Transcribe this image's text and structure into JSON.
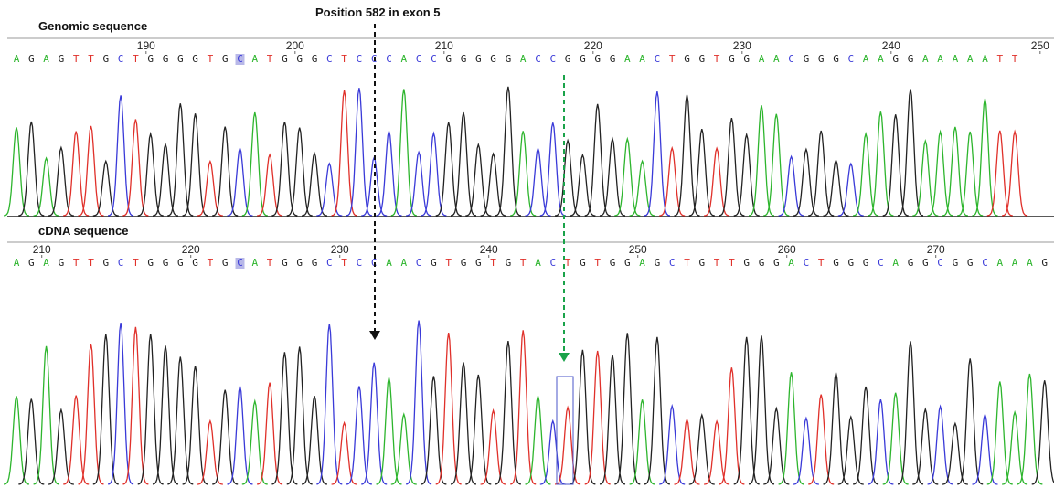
{
  "annotation": "Position 582 in exon 5",
  "panels": [
    {
      "title": "Genomic sequence",
      "positions": [
        190,
        200,
        210,
        220,
        230,
        240,
        250
      ],
      "bases": [
        "A",
        "G",
        "A",
        "G",
        "T",
        "T",
        "G",
        "C",
        "T",
        "G",
        "G",
        "G",
        "G",
        "T",
        "G",
        "C",
        "A",
        "T",
        "G",
        "G",
        "G",
        "C",
        "T",
        "C",
        "C",
        "C",
        "A",
        "C",
        "C",
        "G",
        "G",
        "G",
        "G",
        "G",
        "A",
        "C",
        "C",
        "G",
        "G",
        "G",
        "G",
        "A",
        "A",
        "C",
        "T",
        "G",
        "G",
        "T",
        "G",
        "G",
        "A",
        "A",
        "C",
        "G",
        "G",
        "G",
        "C",
        "A",
        "A",
        "G",
        "G",
        "A",
        "A",
        "A",
        "A",
        "A",
        "T",
        "T"
      ]
    },
    {
      "title": "cDNA sequence",
      "positions": [
        210,
        220,
        230,
        240,
        250,
        260,
        270
      ],
      "bases": [
        "A",
        "G",
        "A",
        "G",
        "T",
        "T",
        "G",
        "C",
        "T",
        "G",
        "G",
        "G",
        "G",
        "T",
        "G",
        "C",
        "A",
        "T",
        "G",
        "G",
        "G",
        "C",
        "T",
        "C",
        "C",
        "A",
        "A",
        "C",
        "G",
        "T",
        "G",
        "G",
        "T",
        "G",
        "T",
        "A",
        "C",
        "T",
        "G",
        "T",
        "G",
        "G",
        "A",
        "G",
        "C",
        "T",
        "G",
        "T",
        "T",
        "G",
        "G",
        "G",
        "A",
        "C",
        "T",
        "G",
        "G",
        "G",
        "C",
        "A",
        "G",
        "G",
        "C",
        "G",
        "G",
        "C",
        "A",
        "A",
        "A",
        "G"
      ]
    }
  ]
}
